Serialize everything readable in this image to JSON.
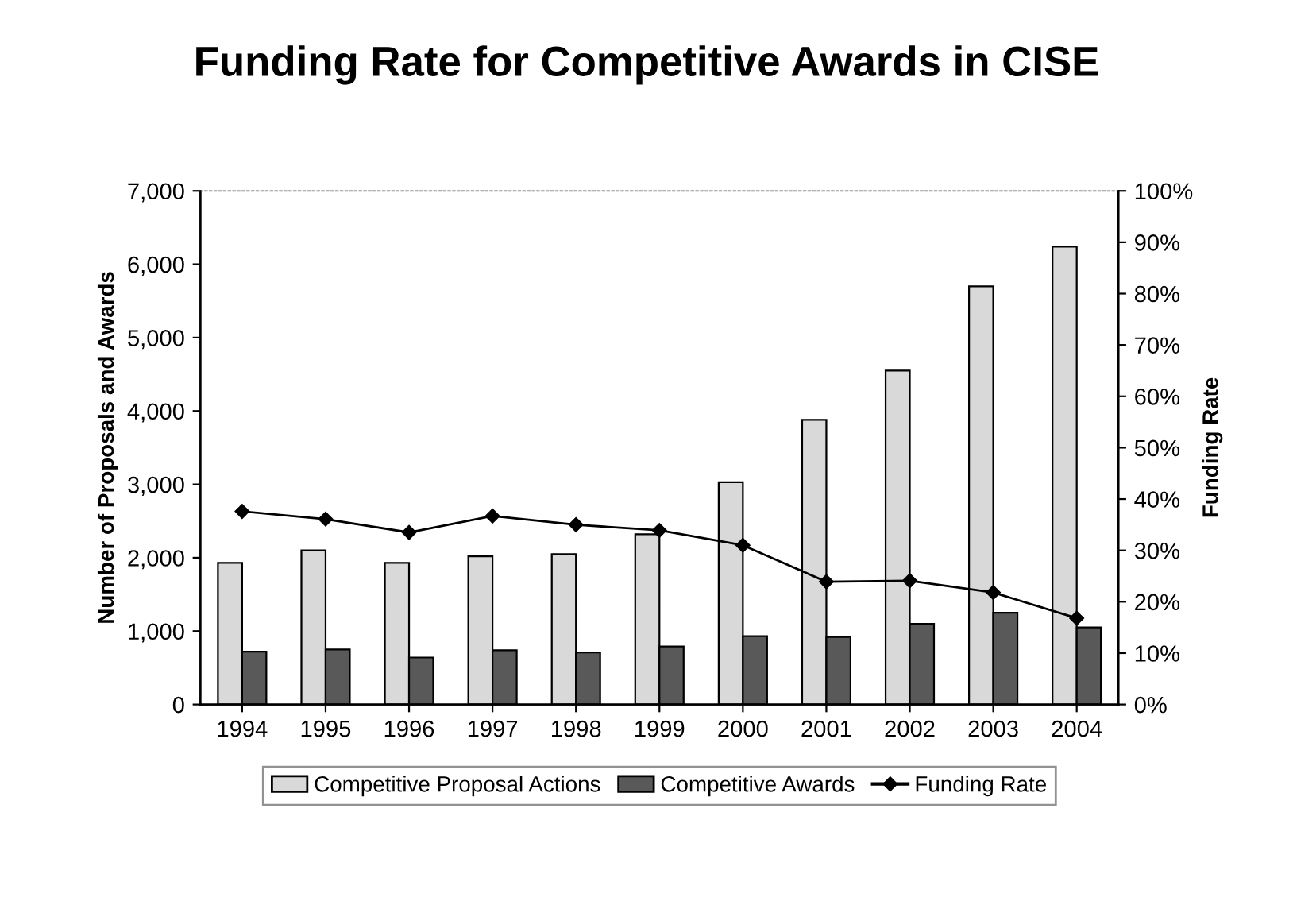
{
  "chart_data": {
    "type": "bar",
    "title": "Funding Rate for Competitive Awards in CISE",
    "categories": [
      "1994",
      "1995",
      "1996",
      "1997",
      "1998",
      "1999",
      "2000",
      "2001",
      "2002",
      "2003",
      "2004"
    ],
    "series": [
      {
        "name": "Competitive Proposal Actions",
        "color": "#d9d9d9",
        "values": [
          1930,
          2100,
          1930,
          2020,
          2050,
          2320,
          3030,
          3880,
          4550,
          5700,
          6240
        ]
      },
      {
        "name": "Competitive Awards",
        "color": "#595959",
        "values": [
          720,
          750,
          640,
          740,
          710,
          790,
          930,
          920,
          1100,
          1250,
          1050
        ]
      },
      {
        "name": "Funding Rate",
        "type": "line",
        "axis": "y2",
        "color": "#000000",
        "marker": "diamond",
        "values": [
          37.6,
          36.1,
          33.5,
          36.7,
          35.0,
          33.9,
          31.0,
          23.9,
          24.1,
          21.8,
          16.8
        ]
      }
    ],
    "ylabel": "Number of Proposals and Awards",
    "y2label": "Funding Rate",
    "ylim": [
      0,
      7000
    ],
    "yticks": [
      0,
      {
        "value": 1000,
        "label": "1,000"
      },
      {
        "value": 2000,
        "label": "2,000"
      },
      {
        "value": 3000,
        "label": "3,000"
      },
      {
        "value": 4000,
        "label": "4,000"
      },
      {
        "value": 5000,
        "label": "5,000"
      },
      {
        "value": 6000,
        "label": "6,000"
      },
      {
        "value": 7000,
        "label": "7,000"
      }
    ],
    "y2lim": [
      0,
      100
    ],
    "y2ticks": [
      {
        "value": 0,
        "label": "0%"
      },
      {
        "value": 10,
        "label": "10%"
      },
      {
        "value": 20,
        "label": "20%"
      },
      {
        "value": 30,
        "label": "30%"
      },
      {
        "value": 40,
        "label": "40%"
      },
      {
        "value": 50,
        "label": "50%"
      },
      {
        "value": 60,
        "label": "60%"
      },
      {
        "value": 70,
        "label": "70%"
      },
      {
        "value": 80,
        "label": "80%"
      },
      {
        "value": 90,
        "label": "90%"
      },
      {
        "value": 100,
        "label": "100%"
      }
    ],
    "grid": false,
    "legend": "bottom"
  }
}
